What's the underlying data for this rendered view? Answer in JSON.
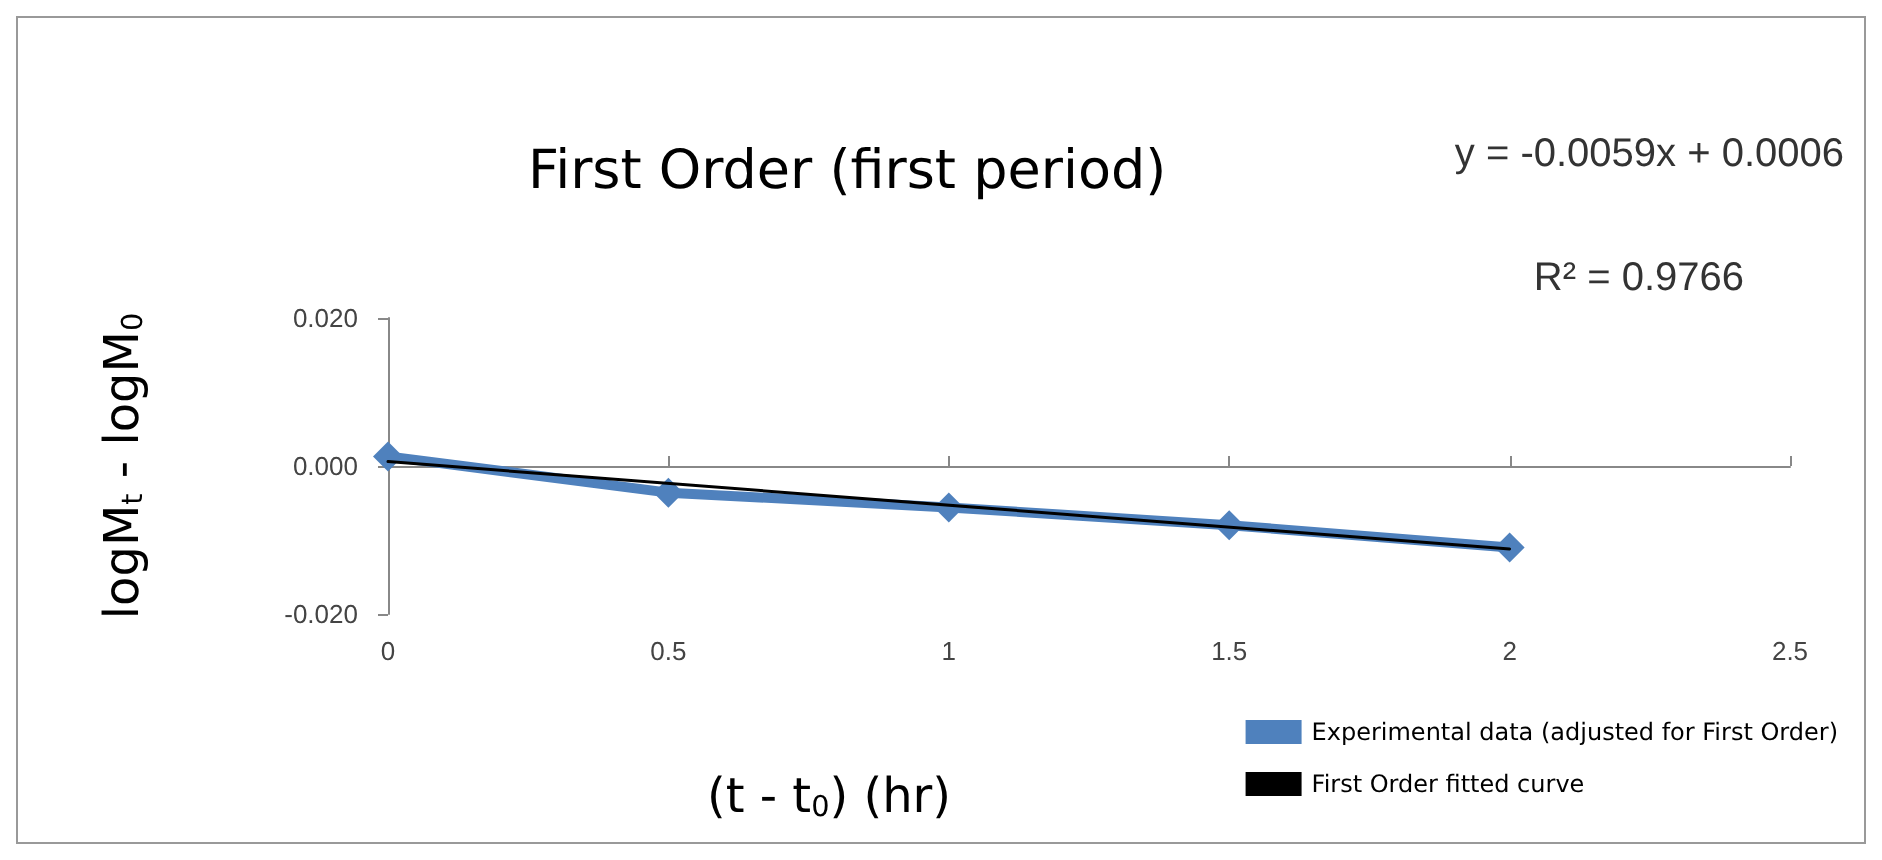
{
  "chart_data": {
    "type": "line",
    "title": "First Order (first period)",
    "xlabel": "(t - t$_{0}$) (hr)",
    "ylabel": "logM$_{t}$ - logM$_{0}$",
    "annotations": [
      "y = -0.0059x + 0.0006",
      "R² = 0.9766"
    ],
    "x": [
      0,
      0.5,
      1,
      1.5,
      2
    ],
    "series": [
      {
        "name": "Experimental data (adjusted for First Order)",
        "color": "#4f81bd",
        "values": [
          0.0013,
          -0.0036,
          -0.0056,
          -0.008,
          -0.011
        ],
        "marker": "diamond"
      },
      {
        "name": "First Order fitted curve",
        "type": "line",
        "color": "#000000",
        "x": [
          0,
          2
        ],
        "values": [
          0.0006,
          -0.0112
        ],
        "marker": "none"
      }
    ],
    "xlim": [
      0,
      2.5
    ],
    "xticks": [
      0,
      0.5,
      1,
      1.5,
      2,
      2.5
    ],
    "ylim": [
      -0.02,
      0.02
    ],
    "yticks": [
      {
        "value": -0.02,
        "label": "-0.020"
      },
      {
        "value": 0,
        "label": "0.000"
      },
      {
        "value": 0.02,
        "label": "0.020"
      }
    ],
    "legend": "bottom right"
  }
}
